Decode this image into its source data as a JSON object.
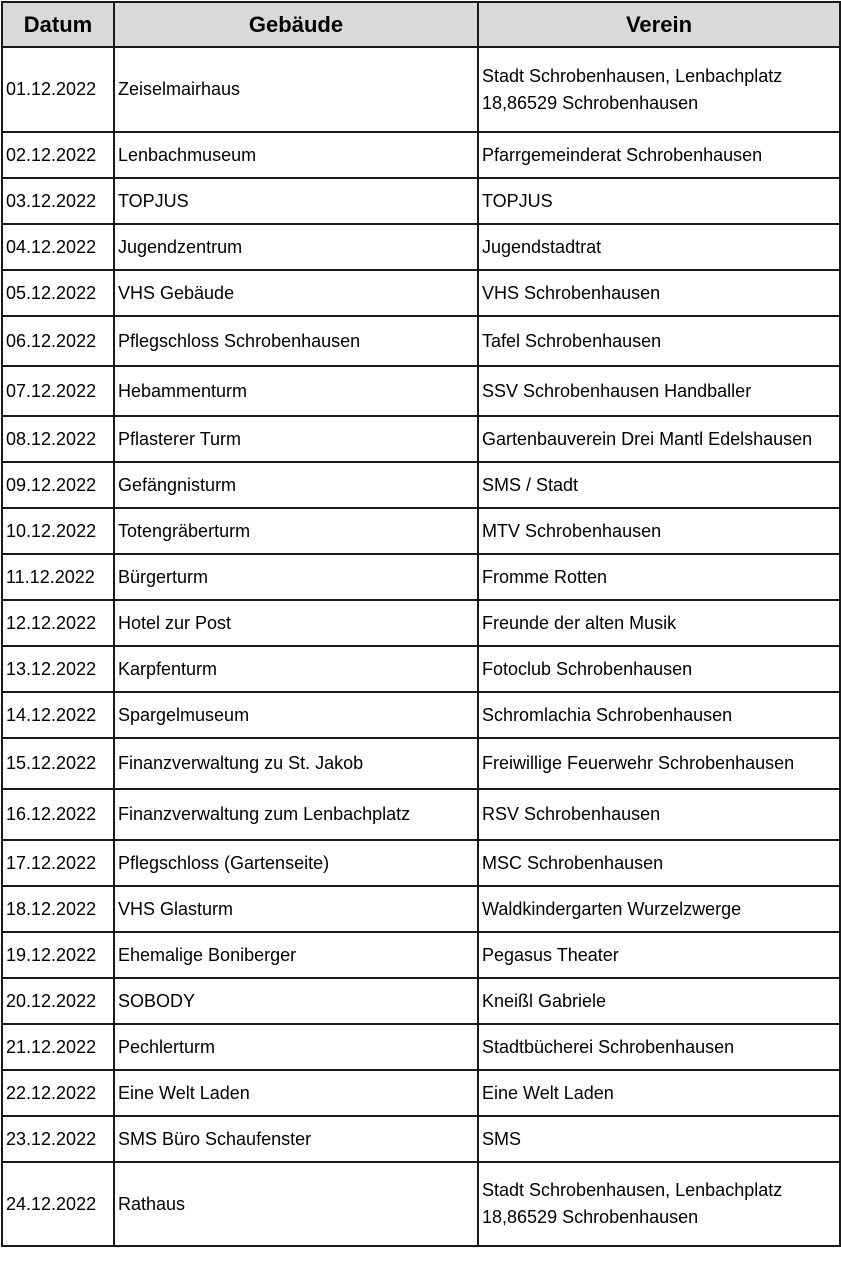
{
  "table": {
    "headers": [
      "Datum",
      "Gebäude",
      "Verein"
    ],
    "rows": [
      {
        "datum": "01.12.2022",
        "gebaeude": "Zeiselmairhaus",
        "verein": "Stadt Schrobenhausen, Lenbachplatz 18,86529 Schrobenhausen"
      },
      {
        "datum": "02.12.2022",
        "gebaeude": "Lenbachmuseum",
        "verein": "Pfarrgemeinderat Schrobenhausen"
      },
      {
        "datum": "03.12.2022",
        "gebaeude": "TOPJUS",
        "verein": "TOPJUS"
      },
      {
        "datum": "04.12.2022",
        "gebaeude": "Jugendzentrum",
        "verein": "Jugendstadtrat"
      },
      {
        "datum": "05.12.2022",
        "gebaeude": "VHS Gebäude",
        "verein": "VHS Schrobenhausen"
      },
      {
        "datum": "06.12.2022",
        "gebaeude": "Pflegschloss Schrobenhausen",
        "verein": "Tafel Schrobenhausen"
      },
      {
        "datum": "07.12.2022",
        "gebaeude": "Hebammenturm",
        "verein": "SSV Schrobenhausen Handballer"
      },
      {
        "datum": "08.12.2022",
        "gebaeude": "Pflasterer Turm",
        "verein": "Gartenbauverein Drei Mantl Edelshausen"
      },
      {
        "datum": "09.12.2022",
        "gebaeude": "Gefängnisturm",
        "verein": "SMS / Stadt"
      },
      {
        "datum": "10.12.2022",
        "gebaeude": "Totengräberturm",
        "verein": "MTV Schrobenhausen"
      },
      {
        "datum": "11.12.2022",
        "gebaeude": "Bürgerturm",
        "verein": "Fromme Rotten"
      },
      {
        "datum": "12.12.2022",
        "gebaeude": "Hotel zur Post",
        "verein": "Freunde der alten Musik"
      },
      {
        "datum": "13.12.2022",
        "gebaeude": "Karpfenturm",
        "verein": "Fotoclub Schrobenhausen"
      },
      {
        "datum": "14.12.2022",
        "gebaeude": "Spargelmuseum",
        "verein": "Schromlachia Schrobenhausen"
      },
      {
        "datum": "15.12.2022",
        "gebaeude": "Finanzverwaltung zu St. Jakob",
        "verein": "Freiwillige Feuerwehr Schrobenhausen"
      },
      {
        "datum": "16.12.2022",
        "gebaeude": "Finanzverwaltung zum Lenbachplatz",
        "verein": "RSV Schrobenhausen"
      },
      {
        "datum": "17.12.2022",
        "gebaeude": "Pflegschloss (Gartenseite)",
        "verein": "MSC Schrobenhausen"
      },
      {
        "datum": "18.12.2022",
        "gebaeude": "VHS Glasturm",
        "verein": "Waldkindergarten Wurzelzwerge"
      },
      {
        "datum": "19.12.2022",
        "gebaeude": "Ehemalige Boniberger",
        "verein": "Pegasus Theater"
      },
      {
        "datum": "20.12.2022",
        "gebaeude": "SOBODY",
        "verein": "Kneißl Gabriele"
      },
      {
        "datum": "21.12.2022",
        "gebaeude": "Pechlerturm",
        "verein": "Stadtbücherei Schrobenhausen"
      },
      {
        "datum": "22.12.2022",
        "gebaeude": "Eine Welt Laden",
        "verein": "Eine Welt Laden"
      },
      {
        "datum": "23.12.2022",
        "gebaeude": "SMS Büro Schaufenster",
        "verein": "SMS"
      },
      {
        "datum": "24.12.2022",
        "gebaeude": "Rathaus",
        "verein": "Stadt Schrobenhausen, Lenbachplatz 18,86529 Schrobenhausen"
      }
    ]
  },
  "colors": {
    "header_bg": "#d9d9d9",
    "border": "#1a1a1a"
  }
}
